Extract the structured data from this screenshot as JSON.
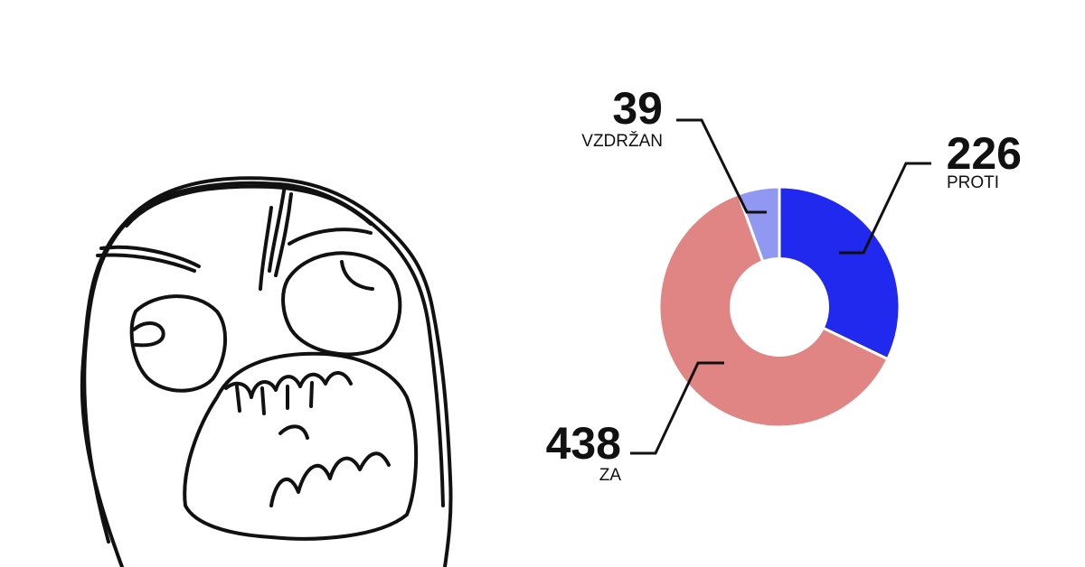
{
  "illustration": {
    "icon": "rage-face-icon"
  },
  "chart_data": {
    "type": "donut",
    "title": "",
    "slices": [
      {
        "label": "PROTI",
        "value": 226,
        "color": "#2229ee"
      },
      {
        "label": "ZA",
        "value": 438,
        "color": "#e08484"
      },
      {
        "label": "VZDRŽAN",
        "value": 39,
        "color": "#9198f2"
      }
    ]
  }
}
